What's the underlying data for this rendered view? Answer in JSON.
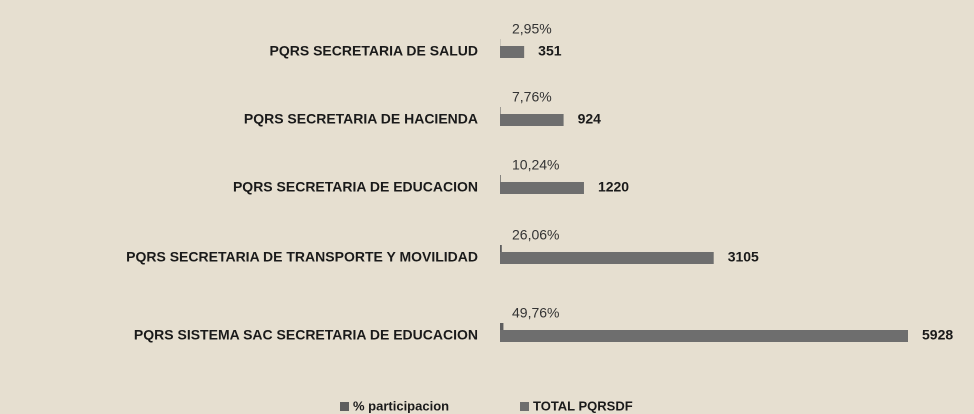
{
  "chart_data": {
    "type": "bar",
    "orientation": "horizontal",
    "categories": [
      "PQRS SECRETARIA DE SALUD",
      "PQRS SECRETARIA DE HACIENDA",
      "PQRS SECRETARIA DE EDUCACION",
      "PQRS SECRETARIA DE TRANSPORTE Y MOVILIDAD",
      "PQRS SISTEMA SAC SECRETARIA DE EDUCACION"
    ],
    "series": [
      {
        "name": "% participacion",
        "color": "#5e5e5e",
        "values": [
          2.95,
          7.76,
          10.24,
          26.06,
          49.76
        ],
        "value_labels": [
          "2,95%",
          "7,76%",
          "10,24%",
          "26,06%",
          "49,76%"
        ]
      },
      {
        "name": "TOTAL PQRSDF",
        "color": "#6e6e6e",
        "values": [
          351,
          924,
          1220,
          3105,
          5928
        ]
      }
    ]
  }
}
